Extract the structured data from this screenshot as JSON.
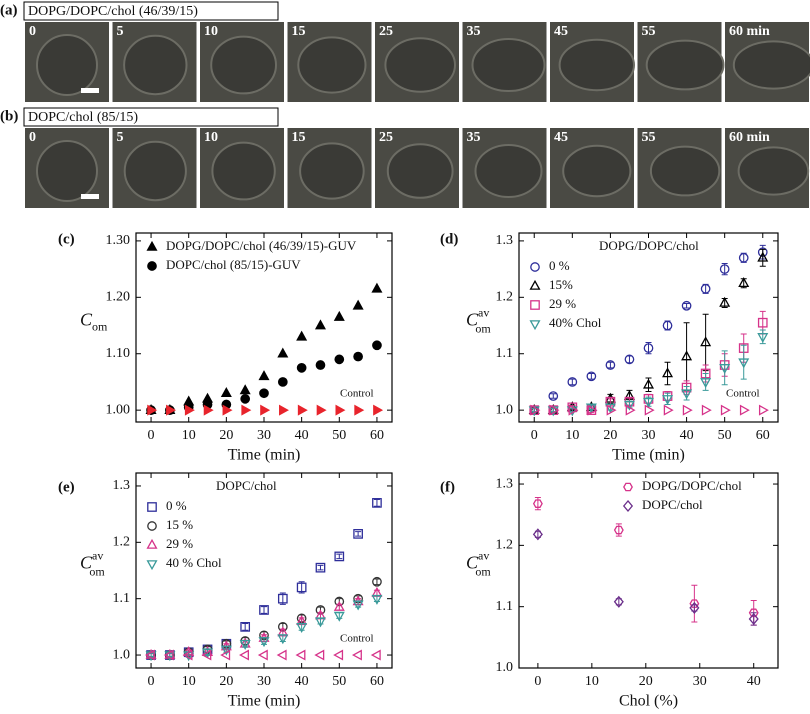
{
  "panels": [
    {
      "label": "(a)",
      "title": "DOPG/DOPC/chol (46/39/15)",
      "frames": [
        "0",
        "5",
        "10",
        "15",
        "25",
        "35",
        "45",
        "55",
        "60 min"
      ]
    },
    {
      "label": "(b)",
      "title": "DOPC/chol (85/15)",
      "frames": [
        "0",
        "5",
        "10",
        "15",
        "25",
        "35",
        "45",
        "55",
        "60 min"
      ]
    }
  ],
  "chart_data": [
    {
      "type": "scatter",
      "label": "(c)",
      "xlabel": "Time (min)",
      "ylabel": "C",
      "ylabel_sub": "om",
      "x": [
        0,
        5,
        10,
        15,
        20,
        25,
        30,
        35,
        40,
        45,
        50,
        55,
        60
      ],
      "xlim": [
        -4,
        64
      ],
      "xticks": [
        0,
        10,
        20,
        30,
        40,
        50,
        60
      ],
      "ylim": [
        0.979,
        1.314
      ],
      "yticks": [
        {
          "value": 1,
          "label": "1.00"
        },
        {
          "value": 1.1,
          "label": "1.10"
        },
        {
          "value": 1.2,
          "label": "1.20"
        },
        {
          "value": 1.3,
          "label": "1.30"
        }
      ],
      "legend": "upper left",
      "annotation": "Control",
      "series": [
        {
          "name": "DOPG/DOPC/chol (46/39/15)-GUV",
          "color": "#000000",
          "marker": "triangle-up",
          "filled": true,
          "values": [
            1.0,
            1.0,
            1.015,
            1.02,
            1.03,
            1.035,
            1.06,
            1.1,
            1.13,
            1.15,
            1.165,
            1.185,
            1.215
          ]
        },
        {
          "name": "DOPC/chol (85/15)-GUV",
          "color": "#000000",
          "marker": "circle",
          "filled": true,
          "values": [
            1.0,
            1.0,
            1.005,
            1.01,
            1.01,
            1.02,
            1.03,
            1.05,
            1.075,
            1.08,
            1.09,
            1.095,
            1.115
          ]
        },
        {
          "color": "#e8242c",
          "marker": "triangle-right",
          "filled": true,
          "values": [
            1.0,
            1.0,
            1.0,
            1.0,
            1.0,
            1.0,
            1.0,
            1.0,
            1.0,
            1.0,
            1.0,
            1.0,
            1.0
          ]
        }
      ]
    },
    {
      "type": "scatter",
      "label": "(d)",
      "xlabel": "Time (min)",
      "ylabel": "C",
      "ylabel_sup": "av",
      "ylabel_sub": "om",
      "x": [
        0,
        5,
        10,
        15,
        20,
        25,
        30,
        35,
        40,
        45,
        50,
        55,
        60
      ],
      "xlim": [
        -4,
        64
      ],
      "xticks": [
        0,
        10,
        20,
        30,
        40,
        50,
        60
      ],
      "ylim": [
        0.979,
        1.314
      ],
      "yticks": [
        {
          "value": 1,
          "label": "1.0"
        },
        {
          "value": 1.1,
          "label": "1.1"
        },
        {
          "value": 1.2,
          "label": "1.2"
        },
        {
          "value": 1.3,
          "label": "1.3"
        }
      ],
      "legend": "upper left",
      "legend_title": "DOPG/DOPC/chol",
      "annotation": "Control",
      "series": [
        {
          "name": "0 %",
          "color": "#2e2e9a",
          "marker": "circle",
          "filled": false,
          "values": [
            1.0,
            1.025,
            1.05,
            1.06,
            1.08,
            1.09,
            1.11,
            1.15,
            1.185,
            1.215,
            1.25,
            1.27,
            1.28
          ],
          "errors": [
            0.004,
            0.004,
            0.005,
            0.005,
            0.005,
            0.006,
            0.01,
            0.008,
            0.004,
            0.008,
            0.01,
            0.008,
            0.012
          ]
        },
        {
          "name": "15%",
          "color": "#000000",
          "marker": "triangle-up",
          "filled": false,
          "values": [
            1.0,
            1.0,
            1.005,
            1.005,
            1.02,
            1.025,
            1.045,
            1.065,
            1.095,
            1.12,
            1.19,
            1.225,
            1.27
          ],
          "errors": [
            0.003,
            0.003,
            0.004,
            0.005,
            0.008,
            0.01,
            0.012,
            0.02,
            0.06,
            0.05,
            0.008,
            0.008,
            0.015
          ]
        },
        {
          "name": "29 %",
          "color": "#d6338a",
          "marker": "square",
          "filled": false,
          "values": [
            1.0,
            1.0,
            1.005,
            1.0,
            1.015,
            1.015,
            1.02,
            1.025,
            1.04,
            1.065,
            1.08,
            1.11,
            1.155
          ],
          "errors": [
            0.003,
            0.003,
            0.003,
            0.004,
            0.005,
            0.006,
            0.008,
            0.008,
            0.012,
            0.015,
            0.02,
            0.025,
            0.02
          ]
        },
        {
          "name": "40% Chol",
          "color": "#3a9a9a",
          "marker": "triangle-down",
          "filled": false,
          "values": [
            1.0,
            1.0,
            1.0,
            1.005,
            1.005,
            1.01,
            1.015,
            1.02,
            1.03,
            1.05,
            1.075,
            1.085,
            1.13
          ],
          "errors": [
            0.003,
            0.003,
            0.003,
            0.004,
            0.005,
            0.006,
            0.008,
            0.01,
            0.012,
            0.015,
            0.03,
            0.03,
            0.012
          ]
        },
        {
          "color": "#d6338a",
          "marker": "triangle-right",
          "filled": false,
          "values": [
            1.0,
            1.0,
            1.0,
            1.0,
            1.0,
            1.0,
            1.0,
            1.0,
            1.0,
            1.0,
            1.0,
            1.0,
            1.0
          ]
        }
      ]
    },
    {
      "type": "scatter",
      "label": "(e)",
      "xlabel": "Time (min)",
      "ylabel": "C",
      "ylabel_sup": "av",
      "ylabel_sub": "om",
      "x": [
        0,
        5,
        10,
        15,
        20,
        25,
        30,
        35,
        40,
        45,
        50,
        55,
        60
      ],
      "xlim": [
        -4,
        64
      ],
      "xticks": [
        0,
        10,
        20,
        30,
        40,
        50,
        60
      ],
      "ylim": [
        0.977,
        1.323
      ],
      "yticks": [
        {
          "value": 1,
          "label": "1.0"
        },
        {
          "value": 1.1,
          "label": "1.1"
        },
        {
          "value": 1.2,
          "label": "1.2"
        },
        {
          "value": 1.3,
          "label": "1.3"
        }
      ],
      "legend": "upper left",
      "legend_title": "DOPC/chol",
      "annotation": "Control",
      "series": [
        {
          "name": "0 %",
          "color": "#2e2e9a",
          "marker": "square",
          "filled": false,
          "values": [
            1.0,
            1.0,
            1.005,
            1.01,
            1.02,
            1.05,
            1.08,
            1.1,
            1.12,
            1.155,
            1.175,
            1.215,
            1.27
          ],
          "errors": [
            0.003,
            0.003,
            0.004,
            0.005,
            0.005,
            0.006,
            0.006,
            0.01,
            0.01,
            0.004,
            0.004,
            0.004,
            0.006
          ]
        },
        {
          "name": "15 %",
          "color": "#333333",
          "marker": "circle",
          "filled": false,
          "values": [
            1.0,
            1.0,
            1.005,
            1.01,
            1.02,
            1.025,
            1.035,
            1.05,
            1.065,
            1.08,
            1.095,
            1.1,
            1.13
          ],
          "errors": [
            0.003,
            0.003,
            0.004,
            0.005,
            0.005,
            0.006,
            0.006,
            0.006,
            0.006,
            0.005,
            0.005,
            0.005,
            0.005
          ]
        },
        {
          "name": "29 %",
          "color": "#d6338a",
          "marker": "triangle-up",
          "filled": false,
          "values": [
            1.0,
            1.0,
            1.005,
            1.005,
            1.015,
            1.02,
            1.03,
            1.04,
            1.06,
            1.07,
            1.085,
            1.095,
            1.11
          ],
          "errors": [
            0.003,
            0.003,
            0.004,
            0.005,
            0.005,
            0.006,
            0.006,
            0.006,
            0.006,
            0.005,
            0.005,
            0.005,
            0.005
          ]
        },
        {
          "name": "40 % Chol",
          "color": "#3a9a9a",
          "marker": "triangle-down",
          "filled": false,
          "values": [
            1.0,
            1.0,
            1.0,
            1.005,
            1.01,
            1.02,
            1.025,
            1.03,
            1.05,
            1.06,
            1.07,
            1.09,
            1.1
          ],
          "errors": [
            0.003,
            0.003,
            0.004,
            0.005,
            0.005,
            0.006,
            0.006,
            0.006,
            0.006,
            0.005,
            0.005,
            0.005,
            0.005
          ]
        },
        {
          "color": "#d6338a",
          "marker": "triangle-left",
          "filled": false,
          "values": [
            1.0,
            1.0,
            1.0,
            1.0,
            1.0,
            1.0,
            1.0,
            1.0,
            1.0,
            1.0,
            1.0,
            1.0,
            1.0
          ]
        }
      ]
    },
    {
      "type": "scatter",
      "label": "(f)",
      "xlabel": "Chol (%)",
      "ylabel": "C",
      "ylabel_sup": "av",
      "ylabel_sub": "om",
      "x": [
        0,
        15,
        29,
        40
      ],
      "xlim": [
        -3.5,
        44.5
      ],
      "xticks": [
        0,
        10,
        20,
        30,
        40
      ],
      "ylim": [
        1.0,
        1.318
      ],
      "yticks": [
        {
          "value": 1,
          "label": "1.0"
        },
        {
          "value": 1.1,
          "label": "1.1"
        },
        {
          "value": 1.2,
          "label": "1.2"
        },
        {
          "value": 1.3,
          "label": "1.3"
        }
      ],
      "legend": "upper right",
      "series": [
        {
          "name": "DOPG/DOPC/chol",
          "color": "#d6338a",
          "marker": "hexagon",
          "filled": false,
          "values": [
            1.268,
            1.225,
            1.105,
            1.09
          ],
          "errors": [
            0.01,
            0.01,
            0.03,
            0.02
          ]
        },
        {
          "name": "DOPC/chol",
          "color": "#6a2e8a",
          "marker": "diamond",
          "filled": false,
          "values": [
            1.218,
            1.108,
            1.098,
            1.08
          ],
          "errors": [
            0.005,
            0.005,
            0.005,
            0.01
          ]
        }
      ]
    }
  ]
}
